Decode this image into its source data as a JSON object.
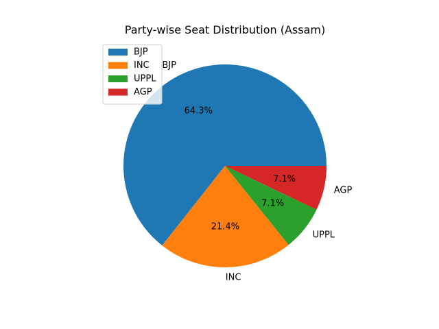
{
  "chart_data": {
    "type": "pie",
    "title": "Party-wise Seat Distribution (Assam)",
    "categories": [
      "BJP",
      "INC",
      "UPPL",
      "AGP"
    ],
    "values": [
      64.3,
      21.4,
      7.1,
      7.1
    ],
    "percent_labels": [
      "64.3%",
      "21.4%",
      "7.1%",
      "7.1%"
    ],
    "colors": [
      "#1f77b4",
      "#ff7f0e",
      "#2ca02c",
      "#d62728"
    ],
    "legend": {
      "placement": "upper-left",
      "entries": [
        "BJP",
        "INC",
        "UPPL",
        "AGP"
      ]
    },
    "start_angle_deg": 0,
    "direction": "counterclockwise"
  }
}
